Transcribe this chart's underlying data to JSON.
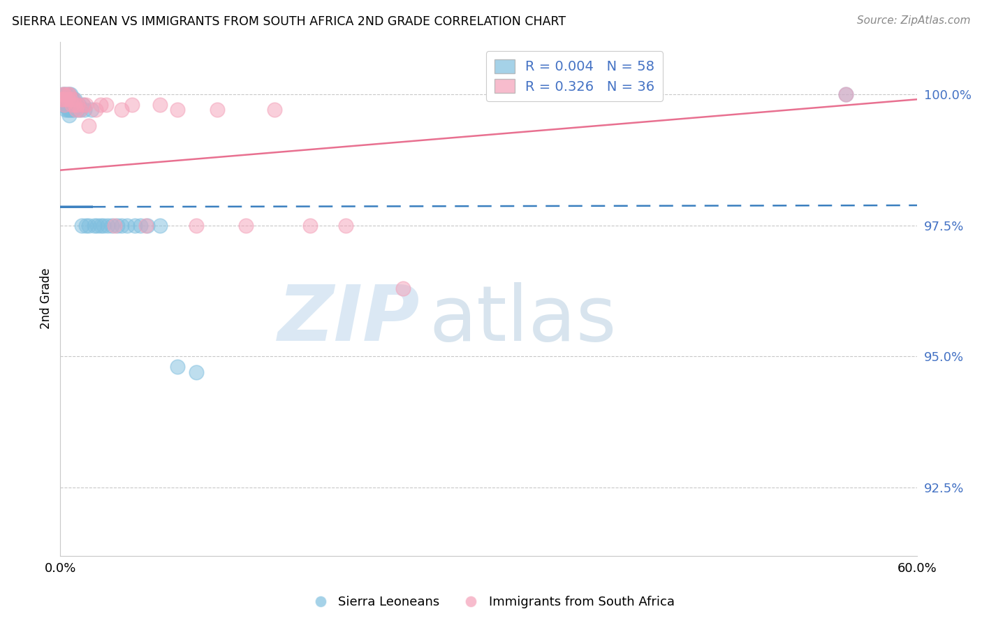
{
  "title": "SIERRA LEONEAN VS IMMIGRANTS FROM SOUTH AFRICA 2ND GRADE CORRELATION CHART",
  "source": "Source: ZipAtlas.com",
  "ylabel": "2nd Grade",
  "ytick_labels": [
    "100.0%",
    "97.5%",
    "95.0%",
    "92.5%"
  ],
  "ytick_values": [
    1.0,
    0.975,
    0.95,
    0.925
  ],
  "xlim": [
    0.0,
    0.6
  ],
  "ylim": [
    0.912,
    1.01
  ],
  "legend_blue_r": "0.004",
  "legend_blue_n": "58",
  "legend_pink_r": "0.326",
  "legend_pink_n": "36",
  "blue_color": "#7fbfdf",
  "pink_color": "#f4a0b8",
  "blue_line_color": "#3a7fbf",
  "pink_line_color": "#e87090",
  "watermark_zip": "ZIP",
  "watermark_atlas": "atlas",
  "blue_scatter_x": [
    0.001,
    0.001,
    0.002,
    0.002,
    0.002,
    0.003,
    0.003,
    0.003,
    0.004,
    0.004,
    0.004,
    0.004,
    0.005,
    0.005,
    0.005,
    0.005,
    0.006,
    0.006,
    0.006,
    0.006,
    0.006,
    0.007,
    0.007,
    0.007,
    0.007,
    0.008,
    0.008,
    0.008,
    0.009,
    0.009,
    0.01,
    0.01,
    0.011,
    0.012,
    0.013,
    0.014,
    0.015,
    0.016,
    0.017,
    0.018,
    0.02,
    0.022,
    0.024,
    0.026,
    0.028,
    0.03,
    0.033,
    0.036,
    0.04,
    0.043,
    0.047,
    0.052,
    0.056,
    0.061,
    0.07,
    0.082,
    0.095,
    0.55
  ],
  "blue_scatter_y": [
    0.999,
    0.998,
    1.0,
    0.999,
    0.998,
    1.0,
    0.999,
    0.998,
    1.0,
    0.999,
    0.998,
    0.997,
    1.0,
    0.999,
    0.998,
    0.997,
    1.0,
    0.999,
    0.998,
    0.997,
    0.996,
    1.0,
    0.999,
    0.998,
    0.997,
    0.999,
    0.998,
    0.997,
    0.999,
    0.997,
    0.999,
    0.998,
    0.998,
    0.997,
    0.998,
    0.997,
    0.975,
    0.998,
    0.997,
    0.975,
    0.975,
    0.997,
    0.975,
    0.975,
    0.975,
    0.975,
    0.975,
    0.975,
    0.975,
    0.975,
    0.975,
    0.975,
    0.975,
    0.975,
    0.975,
    0.948,
    0.947,
    1.0
  ],
  "pink_scatter_x": [
    0.001,
    0.002,
    0.002,
    0.003,
    0.003,
    0.004,
    0.005,
    0.005,
    0.006,
    0.007,
    0.008,
    0.009,
    0.01,
    0.011,
    0.012,
    0.014,
    0.016,
    0.018,
    0.02,
    0.025,
    0.028,
    0.032,
    0.038,
    0.043,
    0.05,
    0.06,
    0.07,
    0.082,
    0.095,
    0.11,
    0.13,
    0.15,
    0.175,
    0.2,
    0.24,
    0.55
  ],
  "pink_scatter_y": [
    0.999,
    1.0,
    0.999,
    1.0,
    0.998,
    0.999,
    1.0,
    0.999,
    1.0,
    0.999,
    0.998,
    0.999,
    0.998,
    0.997,
    0.998,
    0.997,
    0.998,
    0.998,
    0.994,
    0.997,
    0.998,
    0.998,
    0.975,
    0.997,
    0.998,
    0.975,
    0.998,
    0.997,
    0.975,
    0.997,
    0.975,
    0.997,
    0.975,
    0.975,
    0.963,
    1.0
  ],
  "blue_trend_x": [
    0.0,
    0.6
  ],
  "blue_trend_y": [
    0.9785,
    0.9788
  ],
  "pink_trend_x": [
    0.0,
    0.6
  ],
  "pink_trend_y": [
    0.9855,
    0.999
  ]
}
